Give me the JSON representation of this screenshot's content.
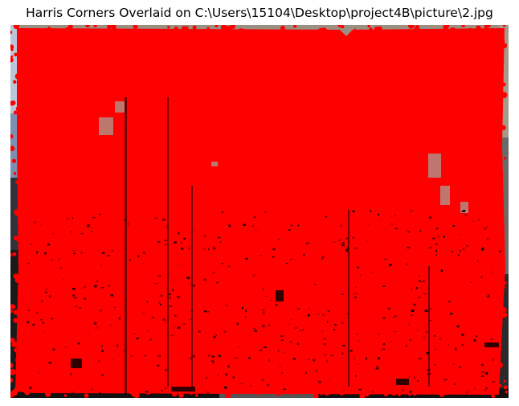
{
  "figure": {
    "title": "Harris Corners Overlaid on C:\\Users\\15104\\Desktop\\project4B\\picture\\2.jpg"
  },
  "image": {
    "marker_color": "#ff0000",
    "dark_feature_color": "#000000",
    "photo_edge_color": "#9a8f80"
  }
}
